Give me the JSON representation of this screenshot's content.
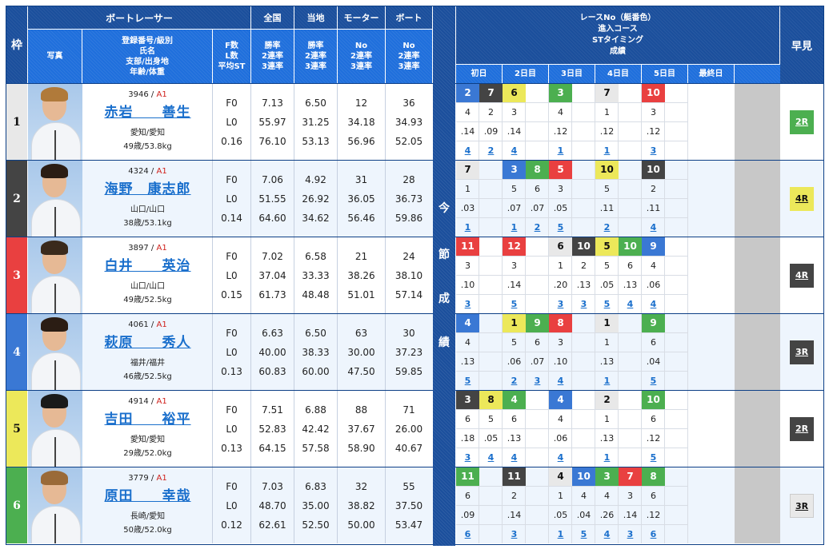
{
  "header": {
    "waku": "枠",
    "boatracer": "ボートレーサー",
    "photo": "写真",
    "profile": [
      "登録番号/級別",
      "氏名",
      "支部/出身地",
      "年齢/体重"
    ],
    "fl": [
      "F数",
      "L数",
      "平均ST"
    ],
    "zenkoku": {
      "title": "全国",
      "sub": [
        "勝率",
        "2連率",
        "3連率"
      ]
    },
    "touchi": {
      "title": "当地",
      "sub": [
        "勝率",
        "2連率",
        "3連率"
      ]
    },
    "motor": {
      "title": "モーター",
      "sub": [
        "No",
        "2連率",
        "3連率"
      ]
    },
    "boat": {
      "title": "ボート",
      "sub": [
        "No",
        "2連率",
        "3連率"
      ]
    },
    "race_info": [
      "レースNo（艇番色）",
      "進入コース",
      "STタイミング",
      "成績"
    ],
    "days": [
      "初日",
      "2日目",
      "3日目",
      "4日目",
      "5日目",
      "最終日",
      ""
    ],
    "hayami": "早見",
    "konsetsu": [
      "今",
      "節",
      "成",
      "績"
    ]
  },
  "colors": {
    "header_dark": "#1b4f9c",
    "header_light": "#1f6fdc",
    "link": "#1a6fcc",
    "class_red": "#d0201b",
    "boat": {
      "1": {
        "bg": "#e8e8e8",
        "fg": "#111"
      },
      "2": {
        "bg": "#444444",
        "fg": "#fff"
      },
      "3": {
        "bg": "#e94040",
        "fg": "#fff"
      },
      "4": {
        "bg": "#3a78d4",
        "fg": "#fff"
      },
      "5": {
        "bg": "#ece85a",
        "fg": "#111"
      },
      "6": {
        "bg": "#4caf50",
        "fg": "#fff"
      }
    }
  },
  "racers": [
    {
      "waku": "1",
      "reg": "3946",
      "cls": "A1",
      "name": "赤岩　　善生",
      "branch": "愛知/愛知",
      "age": "49歳/53.8kg",
      "f": "F0",
      "l": "L0",
      "st": "0.16",
      "zenkoku": [
        "7.13",
        "55.97",
        "76.10"
      ],
      "touchi": [
        "6.50",
        "31.25",
        "53.13"
      ],
      "motor": [
        "12",
        "34.18",
        "56.96"
      ],
      "boat": [
        "36",
        "34.93",
        "52.05"
      ],
      "hair": "#b07a3a",
      "races": [
        {
          "no": "2",
          "boat": 4,
          "course": "4",
          "st": ".14",
          "res": "4"
        },
        {
          "no": "7",
          "boat": 2,
          "course": "2",
          "st": ".09",
          "res": "2"
        },
        {
          "no": "6",
          "boat": 5,
          "course": "3",
          "st": ".14",
          "res": "4"
        },
        null,
        {
          "no": "3",
          "boat": 6,
          "course": "4",
          "st": ".12",
          "res": "1"
        },
        null,
        {
          "no": "7",
          "boat": 1,
          "course": "1",
          "st": ".12",
          "res": "1"
        },
        null,
        {
          "no": "10",
          "boat": 3,
          "course": "3",
          "st": ".12",
          "res": "3"
        },
        null,
        null,
        null
      ],
      "hayami": {
        "label": "2R",
        "boat": 6
      }
    },
    {
      "waku": "2",
      "reg": "4324",
      "cls": "A1",
      "name": "海野　康志郎",
      "branch": "山口/山口",
      "age": "38歳/53.1kg",
      "f": "F0",
      "l": "L0",
      "st": "0.14",
      "zenkoku": [
        "7.06",
        "51.55",
        "64.60"
      ],
      "touchi": [
        "4.92",
        "26.92",
        "34.62"
      ],
      "motor": [
        "31",
        "36.05",
        "56.46"
      ],
      "boat": [
        "28",
        "36.73",
        "59.86"
      ],
      "hair": "#2b1d14",
      "races": [
        {
          "no": "7",
          "boat": 1,
          "course": "1",
          "st": ".03",
          "res": "1"
        },
        null,
        {
          "no": "3",
          "boat": 4,
          "course": "5",
          "st": ".07",
          "res": "1"
        },
        {
          "no": "8",
          "boat": 6,
          "course": "6",
          "st": ".07",
          "res": "2"
        },
        {
          "no": "5",
          "boat": 3,
          "course": "3",
          "st": ".05",
          "res": "5"
        },
        null,
        {
          "no": "10",
          "boat": 5,
          "course": "5",
          "st": ".11",
          "res": "2"
        },
        null,
        {
          "no": "10",
          "boat": 2,
          "course": "2",
          "st": ".11",
          "res": "4"
        },
        null,
        null,
        null
      ],
      "hayami": {
        "label": "4R",
        "boat": 5
      }
    },
    {
      "waku": "3",
      "reg": "3897",
      "cls": "A1",
      "name": "白井　　英治",
      "branch": "山口/山口",
      "age": "49歳/52.5kg",
      "f": "F0",
      "l": "L0",
      "st": "0.15",
      "zenkoku": [
        "7.02",
        "37.04",
        "61.73"
      ],
      "touchi": [
        "6.58",
        "33.33",
        "48.48"
      ],
      "motor": [
        "21",
        "38.26",
        "51.01"
      ],
      "boat": [
        "24",
        "38.10",
        "57.14"
      ],
      "hair": "#3a2a1c",
      "races": [
        {
          "no": "11",
          "boat": 3,
          "course": "3",
          "st": ".10",
          "res": "3"
        },
        null,
        {
          "no": "12",
          "boat": 3,
          "course": "3",
          "st": ".14",
          "res": "5"
        },
        null,
        {
          "no": "6",
          "boat": 1,
          "course": "1",
          "st": ".20",
          "res": "3"
        },
        {
          "no": "10",
          "boat": 2,
          "course": "2",
          "st": ".13",
          "res": "3"
        },
        {
          "no": "5",
          "boat": 5,
          "course": "5",
          "st": ".05",
          "res": "5"
        },
        {
          "no": "10",
          "boat": 6,
          "course": "6",
          "st": ".13",
          "res": "4"
        },
        {
          "no": "9",
          "boat": 4,
          "course": "4",
          "st": ".06",
          "res": "4"
        },
        null,
        null,
        null
      ],
      "hayami": {
        "label": "4R",
        "boat": 2
      }
    },
    {
      "waku": "4",
      "reg": "4061",
      "cls": "A1",
      "name": "萩原　　秀人",
      "branch": "福井/福井",
      "age": "46歳/52.5kg",
      "f": "F0",
      "l": "L0",
      "st": "0.13",
      "zenkoku": [
        "6.63",
        "40.00",
        "60.83"
      ],
      "touchi": [
        "6.50",
        "38.33",
        "60.00"
      ],
      "motor": [
        "63",
        "30.00",
        "47.50"
      ],
      "boat": [
        "30",
        "37.23",
        "59.85"
      ],
      "hair": "#2b1d14",
      "races": [
        {
          "no": "4",
          "boat": 4,
          "course": "4",
          "st": ".13",
          "res": "5"
        },
        null,
        {
          "no": "1",
          "boat": 5,
          "course": "5",
          "st": ".06",
          "res": "2"
        },
        {
          "no": "9",
          "boat": 6,
          "course": "6",
          "st": ".07",
          "res": "3"
        },
        {
          "no": "8",
          "boat": 3,
          "course": "3",
          "st": ".10",
          "res": "4"
        },
        null,
        {
          "no": "1",
          "boat": 1,
          "course": "1",
          "st": ".13",
          "res": "1"
        },
        null,
        {
          "no": "9",
          "boat": 6,
          "course": "6",
          "st": ".04",
          "res": "5"
        },
        null,
        null,
        null
      ],
      "hayami": {
        "label": "3R",
        "boat": 2
      }
    },
    {
      "waku": "5",
      "reg": "4914",
      "cls": "A1",
      "name": "吉田　　裕平",
      "branch": "愛知/愛知",
      "age": "29歳/52.0kg",
      "f": "F0",
      "l": "L0",
      "st": "0.13",
      "zenkoku": [
        "7.51",
        "52.83",
        "64.15"
      ],
      "touchi": [
        "6.88",
        "42.42",
        "57.58"
      ],
      "motor": [
        "88",
        "37.67",
        "58.90"
      ],
      "boat": [
        "71",
        "26.00",
        "40.67"
      ],
      "hair": "#1a1a1a",
      "races": [
        {
          "no": "3",
          "boat": 2,
          "course": "6",
          "st": ".18",
          "res": "3"
        },
        {
          "no": "8",
          "boat": 5,
          "course": "5",
          "st": ".05",
          "res": "4"
        },
        {
          "no": "4",
          "boat": 6,
          "course": "6",
          "st": ".13",
          "res": "4"
        },
        null,
        {
          "no": "4",
          "boat": 4,
          "course": "4",
          "st": ".06",
          "res": "4"
        },
        null,
        {
          "no": "2",
          "boat": 1,
          "course": "1",
          "st": ".13",
          "res": "1"
        },
        null,
        {
          "no": "10",
          "boat": 6,
          "course": "6",
          "st": ".12",
          "res": "5"
        },
        null,
        null,
        null
      ],
      "hayami": {
        "label": "2R",
        "boat": 2
      }
    },
    {
      "waku": "6",
      "reg": "3779",
      "cls": "A1",
      "name": "原田　　幸哉",
      "branch": "長崎/愛知",
      "age": "50歳/52.0kg",
      "f": "F0",
      "l": "L0",
      "st": "0.12",
      "zenkoku": [
        "7.03",
        "48.70",
        "62.61"
      ],
      "touchi": [
        "6.83",
        "35.00",
        "52.50"
      ],
      "motor": [
        "32",
        "38.82",
        "50.00"
      ],
      "boat": [
        "55",
        "37.50",
        "53.47"
      ],
      "hair": "#9a6a38",
      "races": [
        {
          "no": "11",
          "boat": 6,
          "course": "6",
          "st": ".09",
          "res": "6"
        },
        null,
        {
          "no": "11",
          "boat": 2,
          "course": "2",
          "st": ".14",
          "res": "3"
        },
        null,
        {
          "no": "4",
          "boat": 1,
          "course": "1",
          "st": ".05",
          "res": "1"
        },
        {
          "no": "10",
          "boat": 4,
          "course": "4",
          "st": ".04",
          "res": "5"
        },
        {
          "no": "3",
          "boat": 6,
          "course": "4",
          "st": ".26",
          "res": "4"
        },
        {
          "no": "7",
          "boat": 3,
          "course": "3",
          "st": ".14",
          "res": "3"
        },
        {
          "no": "8",
          "boat": 6,
          "course": "6",
          "st": ".12",
          "res": "6"
        },
        null,
        null,
        null
      ],
      "hayami": {
        "label": "3R",
        "boat": 1
      }
    }
  ]
}
